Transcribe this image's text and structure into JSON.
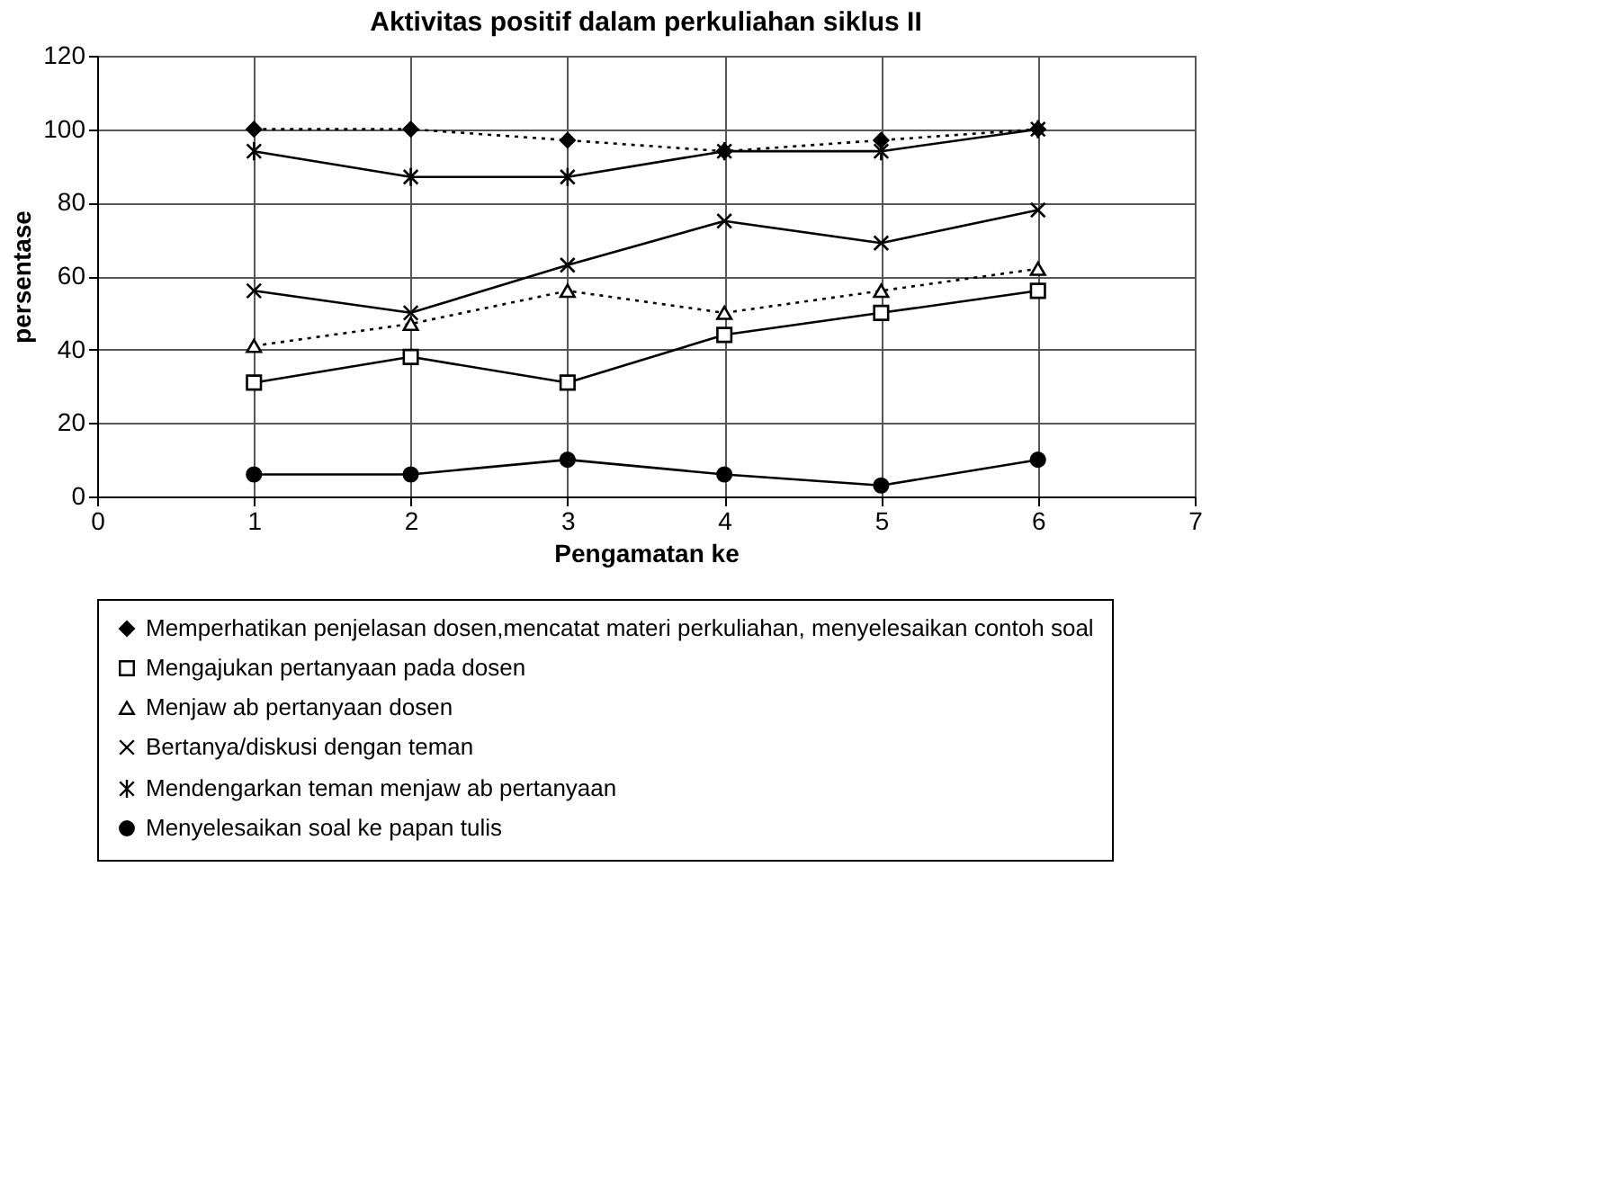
{
  "chart_data": {
    "type": "line",
    "title": "Aktivitas positif dalam perkuliahan siklus II",
    "xlabel": "Pengamatan ke",
    "ylabel": "persentase",
    "x": [
      1,
      2,
      3,
      4,
      5,
      6
    ],
    "xlim": [
      0,
      7
    ],
    "xticks": [
      0,
      1,
      2,
      3,
      4,
      5,
      6,
      7
    ],
    "ylim": [
      0,
      120
    ],
    "yticks": [
      0,
      20,
      40,
      60,
      80,
      100,
      120
    ],
    "grid": true,
    "legend": "bottom",
    "series": [
      {
        "name": "Memperhatikan penjelasan dosen,mencatat materi perkuliahan, menyelesaikan contoh soal",
        "color": "#000000",
        "marker": "diamond",
        "line_style": "dotted",
        "values": [
          100,
          100,
          97,
          94,
          97,
          100
        ]
      },
      {
        "name": "Mengajukan pertanyaan pada dosen",
        "color": "#000000",
        "marker": "square",
        "line_style": "solid",
        "values": [
          31,
          38,
          31,
          44,
          50,
          56
        ]
      },
      {
        "name": "Menjaw ab pertanyaan dosen",
        "color": "#000000",
        "marker": "triangle",
        "line_style": "dotted",
        "values": [
          41,
          47,
          56,
          50,
          56,
          62
        ]
      },
      {
        "name": "Bertanya/diskusi dengan teman",
        "color": "#000000",
        "marker": "cross",
        "line_style": "solid",
        "values": [
          56,
          50,
          63,
          75,
          69,
          78
        ]
      },
      {
        "name": "Mendengarkan teman menjaw ab pertanyaan",
        "color": "#000000",
        "marker": "cross",
        "line_style": "solid",
        "values": [
          94,
          87,
          87,
          94,
          94,
          100
        ]
      },
      {
        "name": "Menyelesaikan soal ke papan tulis",
        "color": "#000000",
        "marker": "circle",
        "line_style": "solid",
        "values": [
          6,
          6,
          10,
          6,
          3,
          10
        ]
      }
    ]
  }
}
